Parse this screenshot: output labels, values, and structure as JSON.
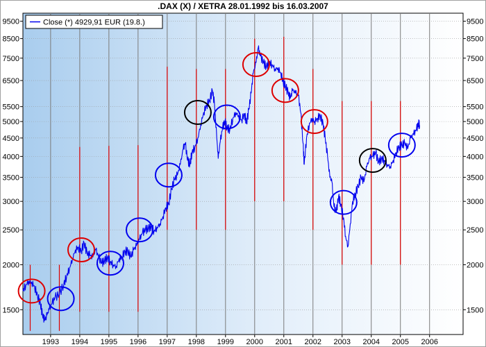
{
  "chart_data": {
    "type": "line",
    "title": ".DAX (X) / XETRA 28.01.1992 bis 16.03.2007",
    "xlabel": "",
    "ylabel": "",
    "yscale": "log",
    "xlim": [
      1992.05,
      2007.15
    ],
    "ylim": [
      1280,
      10000
    ],
    "grid": true,
    "legend_position": "top-left",
    "legend": {
      "label": "Close (*) 4929,91 EUR (19.8.)"
    },
    "x_ticks": [
      {
        "x": 1993,
        "label": "1993"
      },
      {
        "x": 1994,
        "label": "1994"
      },
      {
        "x": 1995,
        "label": "1995"
      },
      {
        "x": 1996,
        "label": "1996"
      },
      {
        "x": 1997,
        "label": "1997"
      },
      {
        "x": 1998,
        "label": "1998"
      },
      {
        "x": 1999,
        "label": "1999"
      },
      {
        "x": 2000,
        "label": "2000"
      },
      {
        "x": 2001,
        "label": "2001"
      },
      {
        "x": 2002,
        "label": "2002"
      },
      {
        "x": 2003,
        "label": "2003"
      },
      {
        "x": 2004,
        "label": "2004"
      },
      {
        "x": 2005,
        "label": "2005"
      },
      {
        "x": 2006,
        "label": "2006"
      }
    ],
    "y_ticks": [
      {
        "y": 1500,
        "label": "1500"
      },
      {
        "y": 2000,
        "label": "2000"
      },
      {
        "y": 2500,
        "label": "2500"
      },
      {
        "y": 3000,
        "label": "3000"
      },
      {
        "y": 3500,
        "label": "3500"
      },
      {
        "y": 4000,
        "label": "4000"
      },
      {
        "y": 4500,
        "label": "4500"
      },
      {
        "y": 5000,
        "label": "5000"
      },
      {
        "y": 5500,
        "label": "5500"
      },
      {
        "y": 6500,
        "label": "6500"
      },
      {
        "y": 7500,
        "label": "7500"
      },
      {
        "y": 8500,
        "label": "8500"
      },
      {
        "y": 9500,
        "label": "9500"
      }
    ],
    "series": [
      {
        "name": "Close (*) 4929,91 EUR (19.8.)",
        "color": "#0000ee",
        "points": [
          [
            1992.05,
            1690
          ],
          [
            1992.15,
            1760
          ],
          [
            1992.25,
            1800
          ],
          [
            1992.35,
            1790
          ],
          [
            1992.45,
            1740
          ],
          [
            1992.55,
            1640
          ],
          [
            1992.65,
            1560
          ],
          [
            1992.72,
            1450
          ],
          [
            1992.8,
            1400
          ],
          [
            1992.88,
            1450
          ],
          [
            1992.95,
            1500
          ],
          [
            1993.05,
            1560
          ],
          [
            1993.15,
            1620
          ],
          [
            1993.3,
            1660
          ],
          [
            1993.45,
            1760
          ],
          [
            1993.55,
            1860
          ],
          [
            1993.65,
            1960
          ],
          [
            1993.75,
            2080
          ],
          [
            1993.85,
            2200
          ],
          [
            1993.95,
            2240
          ],
          [
            1994.05,
            2180
          ],
          [
            1994.15,
            2300
          ],
          [
            1994.25,
            2150
          ],
          [
            1994.35,
            2120
          ],
          [
            1994.45,
            2100
          ],
          [
            1994.55,
            2200
          ],
          [
            1994.65,
            2100
          ],
          [
            1994.75,
            2020
          ],
          [
            1994.85,
            2050
          ],
          [
            1994.95,
            2100
          ],
          [
            1995.05,
            2040
          ],
          [
            1995.15,
            2000
          ],
          [
            1995.25,
            1980
          ],
          [
            1995.35,
            2080
          ],
          [
            1995.45,
            2100
          ],
          [
            1995.55,
            2180
          ],
          [
            1995.65,
            2180
          ],
          [
            1995.75,
            2100
          ],
          [
            1995.85,
            2200
          ],
          [
            1995.95,
            2260
          ],
          [
            1996.05,
            2350
          ],
          [
            1996.15,
            2450
          ],
          [
            1996.25,
            2500
          ],
          [
            1996.35,
            2520
          ],
          [
            1996.45,
            2560
          ],
          [
            1996.55,
            2480
          ],
          [
            1996.65,
            2540
          ],
          [
            1996.75,
            2600
          ],
          [
            1996.85,
            2720
          ],
          [
            1996.95,
            2880
          ],
          [
            1997.05,
            2950
          ],
          [
            1997.15,
            3250
          ],
          [
            1997.25,
            3450
          ],
          [
            1997.35,
            3550
          ],
          [
            1997.45,
            3800
          ],
          [
            1997.55,
            4200
          ],
          [
            1997.62,
            4350
          ],
          [
            1997.7,
            3900
          ],
          [
            1997.78,
            3800
          ],
          [
            1997.85,
            4100
          ],
          [
            1997.95,
            4250
          ],
          [
            1998.05,
            4500
          ],
          [
            1998.15,
            4900
          ],
          [
            1998.25,
            5300
          ],
          [
            1998.35,
            5550
          ],
          [
            1998.45,
            5700
          ],
          [
            1998.55,
            6100
          ],
          [
            1998.62,
            5600
          ],
          [
            1998.7,
            4500
          ],
          [
            1998.75,
            3950
          ],
          [
            1998.82,
            4400
          ],
          [
            1998.9,
            4800
          ],
          [
            1998.98,
            5000
          ],
          [
            1999.05,
            4800
          ],
          [
            1999.15,
            4750
          ],
          [
            1999.25,
            5100
          ],
          [
            1999.35,
            5300
          ],
          [
            1999.45,
            5200
          ],
          [
            1999.55,
            5050
          ],
          [
            1999.65,
            5250
          ],
          [
            1999.72,
            4950
          ],
          [
            1999.8,
            5400
          ],
          [
            1999.88,
            6000
          ],
          [
            1999.95,
            6800
          ],
          [
            2000.05,
            7300
          ],
          [
            2000.12,
            8000
          ],
          [
            2000.2,
            7600
          ],
          [
            2000.3,
            7300
          ],
          [
            2000.4,
            7100
          ],
          [
            2000.5,
            7300
          ],
          [
            2000.6,
            7200
          ],
          [
            2000.7,
            7000
          ],
          [
            2000.8,
            7050
          ],
          [
            2000.9,
            6800
          ],
          [
            2000.98,
            6450
          ],
          [
            2001.05,
            6300
          ],
          [
            2001.15,
            6000
          ],
          [
            2001.22,
            5800
          ],
          [
            2001.3,
            6100
          ],
          [
            2001.4,
            6000
          ],
          [
            2001.5,
            5900
          ],
          [
            2001.58,
            5300
          ],
          [
            2001.66,
            4350
          ],
          [
            2001.7,
            3800
          ],
          [
            2001.78,
            4500
          ],
          [
            2001.88,
            4950
          ],
          [
            2001.98,
            5100
          ],
          [
            2002.05,
            5000
          ],
          [
            2002.15,
            5100
          ],
          [
            2002.25,
            5200
          ],
          [
            2002.35,
            4900
          ],
          [
            2002.42,
            4500
          ],
          [
            2002.5,
            4000
          ],
          [
            2002.58,
            3500
          ],
          [
            2002.65,
            3400
          ],
          [
            2002.72,
            2900
          ],
          [
            2002.8,
            2800
          ],
          [
            2002.88,
            3100
          ],
          [
            2002.95,
            2950
          ],
          [
            2003.05,
            2700
          ],
          [
            2003.12,
            2400
          ],
          [
            2003.2,
            2250
          ],
          [
            2003.28,
            2600
          ],
          [
            2003.36,
            3000
          ],
          [
            2003.45,
            3150
          ],
          [
            2003.55,
            3300
          ],
          [
            2003.65,
            3500
          ],
          [
            2003.75,
            3400
          ],
          [
            2003.85,
            3750
          ],
          [
            2003.95,
            3950
          ],
          [
            2004.05,
            4000
          ],
          [
            2004.15,
            4100
          ],
          [
            2004.25,
            3850
          ],
          [
            2004.35,
            3950
          ],
          [
            2004.45,
            3900
          ],
          [
            2004.55,
            3800
          ],
          [
            2004.65,
            3750
          ],
          [
            2004.75,
            3900
          ],
          [
            2004.85,
            4100
          ],
          [
            2004.95,
            4250
          ],
          [
            2005.05,
            4300
          ],
          [
            2005.15,
            4350
          ],
          [
            2005.25,
            4200
          ],
          [
            2005.35,
            4500
          ],
          [
            2005.45,
            4600
          ],
          [
            2005.55,
            4750
          ],
          [
            2005.62,
            4930
          ],
          [
            2005.66,
            4880
          ]
        ]
      }
    ],
    "annotations": {
      "vertical_lines": {
        "color": "#dd0000",
        "lines": [
          {
            "x": 1992.3,
            "y_low": 1310,
            "y_high": 2000
          },
          {
            "x": 1993.3,
            "y_low": 1310,
            "y_high": 2000
          },
          {
            "x": 1994.0,
            "y_low": 1480,
            "y_high": 4250
          },
          {
            "x": 1995.0,
            "y_low": 1480,
            "y_high": 4280
          },
          {
            "x": 1996.0,
            "y_low": 1480,
            "y_high": 4300
          },
          {
            "x": 1997.0,
            "y_low": 2500,
            "y_high": 7100
          },
          {
            "x": 1998.0,
            "y_low": 2500,
            "y_high": 7000
          },
          {
            "x": 1999.0,
            "y_low": 2500,
            "y_high": 7000
          },
          {
            "x": 2000.0,
            "y_low": 3000,
            "y_high": 8500
          },
          {
            "x": 2001.0,
            "y_low": 3000,
            "y_high": 8600
          },
          {
            "x": 2002.0,
            "y_low": 2500,
            "y_high": 7000
          },
          {
            "x": 2003.0,
            "y_low": 2000,
            "y_high": 5700
          },
          {
            "x": 2004.0,
            "y_low": 2000,
            "y_high": 5700
          },
          {
            "x": 2005.0,
            "y_low": 2000,
            "y_high": 5700
          }
        ]
      },
      "circles": [
        {
          "x": 1992.35,
          "y": 1690,
          "color": "#dd0000"
        },
        {
          "x": 1993.35,
          "y": 1610,
          "color": "#0000ee"
        },
        {
          "x": 1994.05,
          "y": 2200,
          "color": "#dd0000"
        },
        {
          "x": 1995.05,
          "y": 2020,
          "color": "#0000ee"
        },
        {
          "x": 1996.05,
          "y": 2500,
          "color": "#0000ee"
        },
        {
          "x": 1997.05,
          "y": 3550,
          "color": "#0000ee"
        },
        {
          "x": 1998.05,
          "y": 5300,
          "color": "#000000"
        },
        {
          "x": 1999.05,
          "y": 5150,
          "color": "#0000ee"
        },
        {
          "x": 2000.05,
          "y": 7200,
          "color": "#dd0000"
        },
        {
          "x": 2001.05,
          "y": 6100,
          "color": "#dd0000"
        },
        {
          "x": 2002.05,
          "y": 5000,
          "color": "#dd0000"
        },
        {
          "x": 2003.05,
          "y": 2980,
          "color": "#0000ee"
        },
        {
          "x": 2004.05,
          "y": 3900,
          "color": "#000000"
        },
        {
          "x": 2005.05,
          "y": 4300,
          "color": "#0000ee"
        }
      ]
    }
  }
}
